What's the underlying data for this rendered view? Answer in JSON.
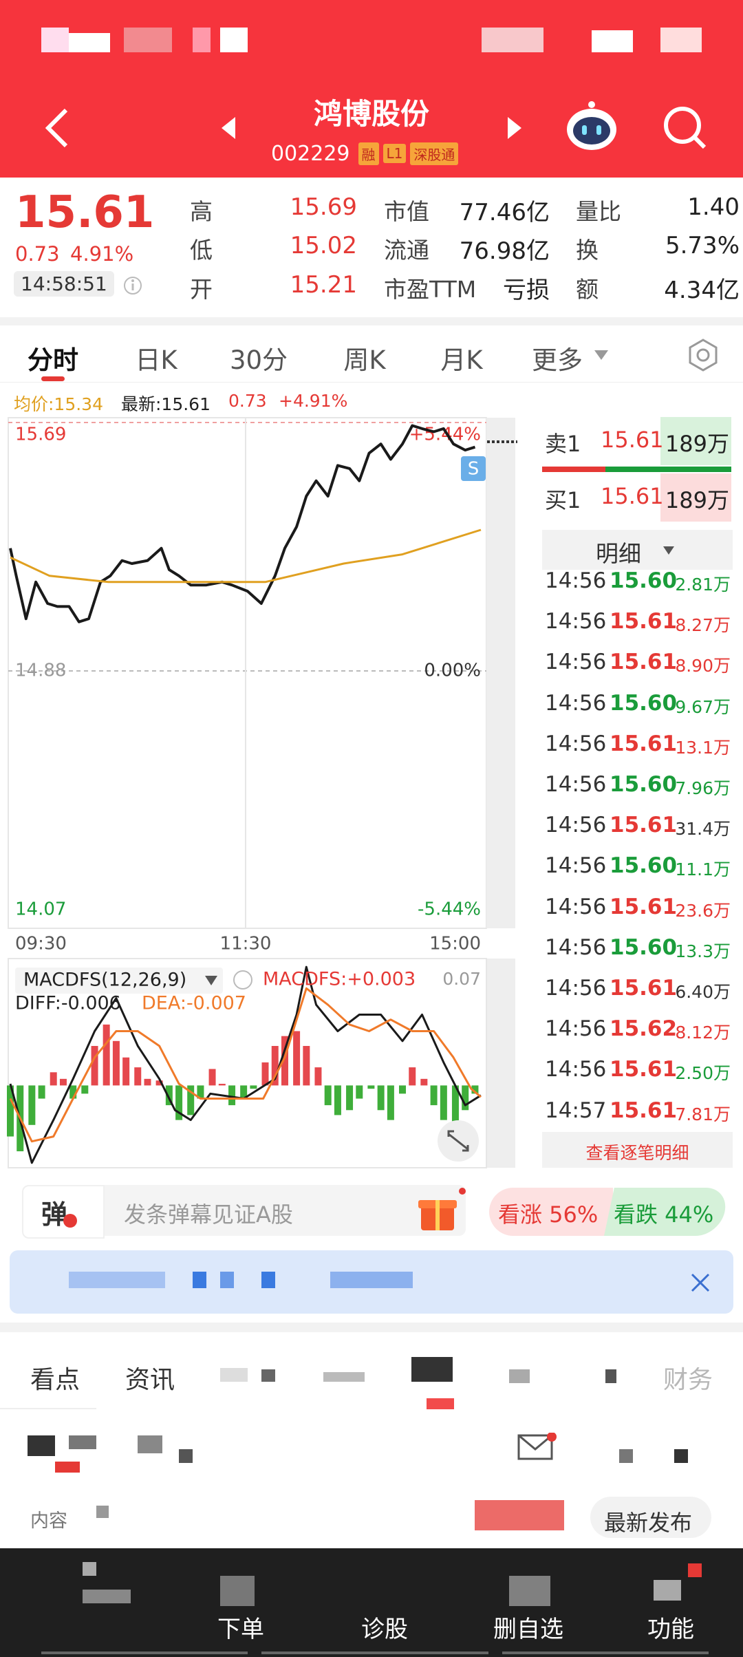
{
  "header": {
    "title": "鸿博股份",
    "code": "002229",
    "badges": [
      "融",
      "L1",
      "深股通"
    ]
  },
  "quote": {
    "price": "15.61",
    "change": "0.73",
    "change_pct": "4.91%",
    "time": "14:58:51",
    "rows": [
      [
        "高",
        "15.69",
        "市值",
        "77.46亿",
        "量比",
        "1.40"
      ],
      [
        "低",
        "15.02",
        "流通",
        "76.98亿",
        "换",
        "5.73%"
      ],
      [
        "开",
        "15.21",
        "市盈TTM",
        "亏损",
        "额",
        "4.34亿"
      ]
    ]
  },
  "tabs": {
    "items": [
      "分时",
      "日K",
      "30分",
      "周K",
      "月K",
      "更多"
    ],
    "active": 0
  },
  "chart_info": {
    "avg": "均价:15.34",
    "last": "最新:15.61",
    "change": "0.73",
    "change_pct": "+4.91%"
  },
  "chart_data": [
    {
      "type": "line",
      "x": [
        0,
        3,
        8,
        13,
        19,
        24,
        30,
        35,
        40,
        46,
        51,
        57,
        62,
        70,
        77,
        81,
        86,
        92,
        100,
        108,
        113,
        121,
        128,
        135,
        140,
        146,
        151,
        156,
        162,
        167,
        173,
        178,
        183,
        189,
        194,
        200,
        205,
        210,
        216,
        221,
        226,
        232,
        237
      ],
      "xlim": [
        0,
        240
      ],
      "xticks": [
        {
          "value": 0,
          "label": "09:30"
        },
        {
          "value": 120,
          "label": "11:30"
        },
        {
          "value": 240,
          "label": "15:00"
        }
      ],
      "ylim": [
        14.07,
        15.69
      ],
      "yticks": [
        15.69,
        14.88,
        14.07
      ],
      "y2lim": [
        -5.44,
        5.44
      ],
      "y2ticks": [
        {
          "value": 5.44,
          "label": "+5.44%"
        },
        {
          "value": 0,
          "label": "0.00%"
        },
        {
          "value": -5.44,
          "label": "-5.44%"
        }
      ],
      "annotation": "S",
      "series": [
        {
          "color": "#1a1a1a",
          "values": [
            15.28,
            15.19,
            15.05,
            15.17,
            15.1,
            15.09,
            15.09,
            15.04,
            15.05,
            15.17,
            15.19,
            15.24,
            15.23,
            15.24,
            15.28,
            15.21,
            15.19,
            15.16,
            15.16,
            15.17,
            15.16,
            15.14,
            15.1,
            15.19,
            15.28,
            15.35,
            15.45,
            15.5,
            15.45,
            15.55,
            15.54,
            15.5,
            15.59,
            15.62,
            15.57,
            15.62,
            15.68,
            15.67,
            15.66,
            15.67,
            15.62,
            15.6,
            15.61
          ]
        },
        {
          "color": "#e0a020",
          "x": [
            0,
            20,
            50,
            100,
            130,
            150,
            170,
            200,
            240
          ],
          "values": [
            15.25,
            15.19,
            15.17,
            15.17,
            15.17,
            15.2,
            15.23,
            15.26,
            15.34
          ]
        }
      ]
    },
    {
      "type": "macd",
      "title": "MACDFS(12,26,9)",
      "value_label": "MACDFS:+0.003",
      "diff_label": "DIFF:-0.006",
      "dea_label": "DEA:-0.007",
      "x": [
        0,
        5,
        11,
        16,
        22,
        27,
        32,
        38,
        43,
        49,
        54,
        59,
        65,
        70,
        76,
        81,
        86,
        92,
        97,
        103,
        108,
        113,
        119,
        124,
        130,
        135,
        140,
        146,
        151,
        157,
        162,
        167,
        173,
        178,
        184,
        189,
        194,
        200,
        205,
        211,
        216,
        221,
        227,
        232,
        237
      ],
      "values": [
        -0.031,
        -0.04,
        -0.024,
        -0.008,
        0.008,
        0.004,
        -0.008,
        -0.005,
        0.024,
        0.037,
        0.027,
        0.017,
        0.011,
        0.004,
        0.003,
        -0.012,
        -0.021,
        -0.018,
        -0.008,
        0.01,
        0.001,
        -0.012,
        -0.008,
        -0.002,
        0.014,
        0.024,
        0.03,
        0.033,
        0.024,
        0.011,
        -0.012,
        -0.018,
        -0.015,
        -0.008,
        -0.002,
        -0.015,
        -0.021,
        -0.005,
        0.011,
        0.004,
        -0.012,
        -0.021,
        -0.024,
        -0.015,
        -0.005
      ],
      "up_color": "#e5484d",
      "down_color": "#3fae3a",
      "xlim": [
        0,
        240
      ],
      "ylim": [
        -0.05,
        0.075
      ],
      "yticks": [
        0.07
      ],
      "series": [
        {
          "color": "#1a1a1a",
          "x": [
            0,
            11,
            22,
            32,
            43,
            54,
            65,
            76,
            84,
            92,
            102,
            119,
            135,
            146,
            151,
            156,
            167,
            178,
            189,
            200,
            210,
            221,
            232,
            240
          ],
          "values": [
            0.001,
            -0.047,
            -0.021,
            0.004,
            0.033,
            0.053,
            0.024,
            0.004,
            -0.015,
            -0.021,
            -0.005,
            -0.008,
            0.004,
            0.043,
            0.072,
            0.049,
            0.033,
            0.043,
            0.043,
            0.027,
            0.043,
            0.014,
            -0.012,
            -0.006
          ]
        },
        {
          "color": "#f07a2a",
          "x": [
            0,
            11,
            22,
            32,
            43,
            54,
            65,
            76,
            86,
            97,
            113,
            129,
            140,
            151,
            162,
            173,
            183,
            194,
            205,
            216,
            226,
            235,
            240
          ],
          "values": [
            -0.008,
            -0.034,
            -0.031,
            -0.008,
            0.017,
            0.033,
            0.033,
            0.024,
            0.001,
            -0.008,
            -0.008,
            -0.008,
            0.017,
            0.059,
            0.049,
            0.037,
            0.033,
            0.04,
            0.033,
            0.033,
            0.017,
            -0.002,
            -0.007
          ]
        }
      ]
    }
  ],
  "order_book": {
    "sell": {
      "label": "卖1",
      "price": "15.61",
      "volume": "189万"
    },
    "buy": {
      "label": "买1",
      "price": "15.61",
      "volume": "189万"
    },
    "detail_title": "明细",
    "trades": [
      {
        "time": "14:56",
        "price": "15.60",
        "volume": "2.81万",
        "price_color": "#1a9c3a",
        "volume_color": "#1a9c3a"
      },
      {
        "time": "14:56",
        "price": "15.61",
        "volume": "8.27万",
        "price_color": "#e53935",
        "volume_color": "#e53935"
      },
      {
        "time": "14:56",
        "price": "15.61",
        "volume": "8.90万",
        "price_color": "#e53935",
        "volume_color": "#e53935"
      },
      {
        "time": "14:56",
        "price": "15.60",
        "volume": "9.67万",
        "price_color": "#1a9c3a",
        "volume_color": "#1a9c3a"
      },
      {
        "time": "14:56",
        "price": "15.61",
        "volume": "13.1万",
        "price_color": "#e53935",
        "volume_color": "#e53935"
      },
      {
        "time": "14:56",
        "price": "15.60",
        "volume": "7.96万",
        "price_color": "#1a9c3a",
        "volume_color": "#1a9c3a"
      },
      {
        "time": "14:56",
        "price": "15.61",
        "volume": "31.4万",
        "price_color": "#e53935",
        "volume_color": "#333333"
      },
      {
        "time": "14:56",
        "price": "15.60",
        "volume": "11.1万",
        "price_color": "#1a9c3a",
        "volume_color": "#1a9c3a"
      },
      {
        "time": "14:56",
        "price": "15.61",
        "volume": "23.6万",
        "price_color": "#e53935",
        "volume_color": "#e53935"
      },
      {
        "time": "14:56",
        "price": "15.60",
        "volume": "13.3万",
        "price_color": "#1a9c3a",
        "volume_color": "#1a9c3a"
      },
      {
        "time": "14:56",
        "price": "15.61",
        "volume": "6.40万",
        "price_color": "#e53935",
        "volume_color": "#333333"
      },
      {
        "time": "14:56",
        "price": "15.62",
        "volume": "8.12万",
        "price_color": "#e53935",
        "volume_color": "#e53935"
      },
      {
        "time": "14:56",
        "price": "15.61",
        "volume": "2.50万",
        "price_color": "#e53935",
        "volume_color": "#1a9c3a"
      },
      {
        "time": "14:57",
        "price": "15.61",
        "volume": "7.81万",
        "price_color": "#e53935",
        "volume_color": "#e53935"
      }
    ],
    "more": "查看逐笔明细"
  },
  "barrage": {
    "badge": "弹",
    "placeholder": "发条弹幕见证A股",
    "up": "看涨 56%",
    "down": "看跌 44%"
  },
  "news_tabs": [
    "看点",
    "资讯",
    "财务"
  ],
  "content": {
    "label": "内容",
    "button": "最新发布"
  },
  "bottom_nav": [
    "下单",
    "诊股",
    "删自选",
    "功能"
  ]
}
